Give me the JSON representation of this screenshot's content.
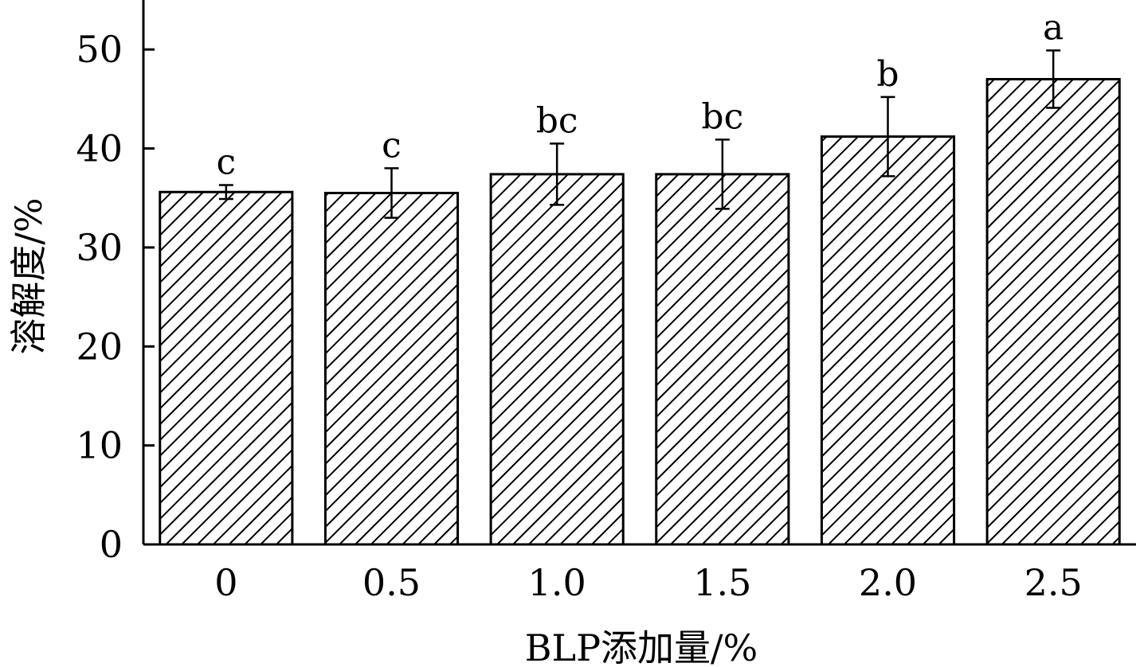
{
  "chart_data": {
    "type": "bar",
    "categories": [
      "0",
      "0.5",
      "1.0",
      "1.5",
      "2.0",
      "2.5"
    ],
    "values": [
      35.6,
      35.5,
      37.4,
      37.4,
      41.2,
      47.0
    ],
    "errors": [
      0.7,
      2.5,
      3.1,
      3.5,
      4.0,
      2.9
    ],
    "significance": [
      "c",
      "c",
      "bc",
      "bc",
      "b",
      "a"
    ],
    "xlabel": "BLP添加量/%",
    "ylabel": "溶解度/%",
    "ylim": [
      0,
      55
    ],
    "yticks": [
      0,
      10,
      20,
      30,
      40,
      50
    ],
    "bar_fill": "diagonal-hatch",
    "colors": {
      "stroke": "#000000",
      "background": "#ffffff"
    },
    "grid": false,
    "legend": "none"
  }
}
